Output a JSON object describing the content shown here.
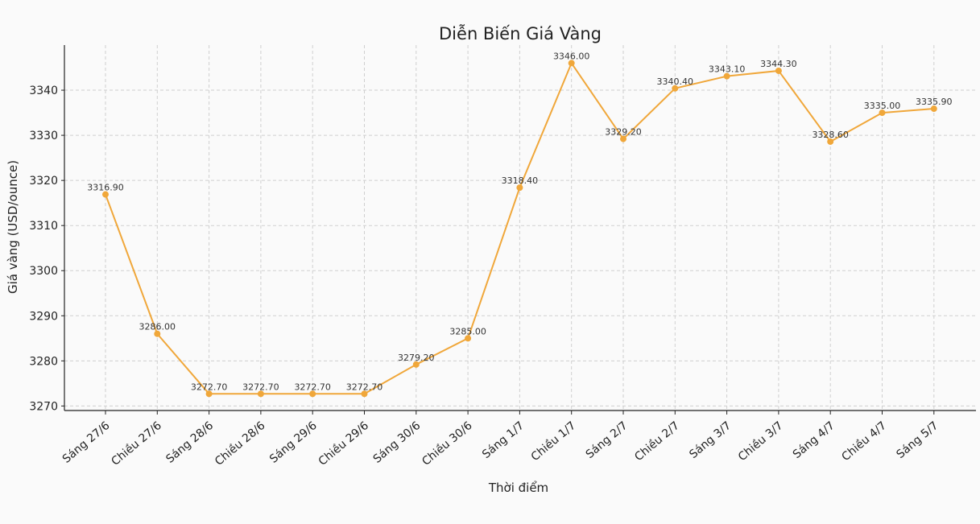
{
  "chart_data": {
    "type": "line",
    "title": "Diễn Biến Giá Vàng",
    "xlabel": "Thời điểm",
    "ylabel": "Giá vàng (USD/ounce)",
    "categories": [
      "Sáng 27/6",
      "Chiều 27/6",
      "Sáng 28/6",
      "Chiều 28/6",
      "Sáng 29/6",
      "Chiều 29/6",
      "Sáng 30/6",
      "Chiều 30/6",
      "Sáng 1/7",
      "Chiều 1/7",
      "Sáng 2/7",
      "Chiều 2/7",
      "Sáng 3/7",
      "Chiều 3/7",
      "Sáng 4/7",
      "Chiều 4/7",
      "Sáng 5/7"
    ],
    "values": [
      3316.9,
      3286.0,
      3272.7,
      3272.7,
      3272.7,
      3272.7,
      3279.2,
      3285.0,
      3318.4,
      3346.0,
      3329.2,
      3340.4,
      3343.1,
      3344.3,
      3328.6,
      3335.0,
      3335.9
    ],
    "data_labels": [
      "3316.90",
      "3286.00",
      "3272.70",
      "3272.70",
      "3272.70",
      "3272.70",
      "3279.20",
      "3285.00",
      "3318.40",
      "3346.00",
      "3329.20",
      "3340.40",
      "3343.10",
      "3344.30",
      "3328.60",
      "3335.00",
      "3335.90"
    ],
    "yticks": [
      "3270",
      "3280",
      "3290",
      "3300",
      "3310",
      "3320",
      "3330",
      "3340"
    ],
    "ylim": [
      3269,
      3350
    ],
    "grid": true,
    "line_color": "#f0a73a"
  }
}
